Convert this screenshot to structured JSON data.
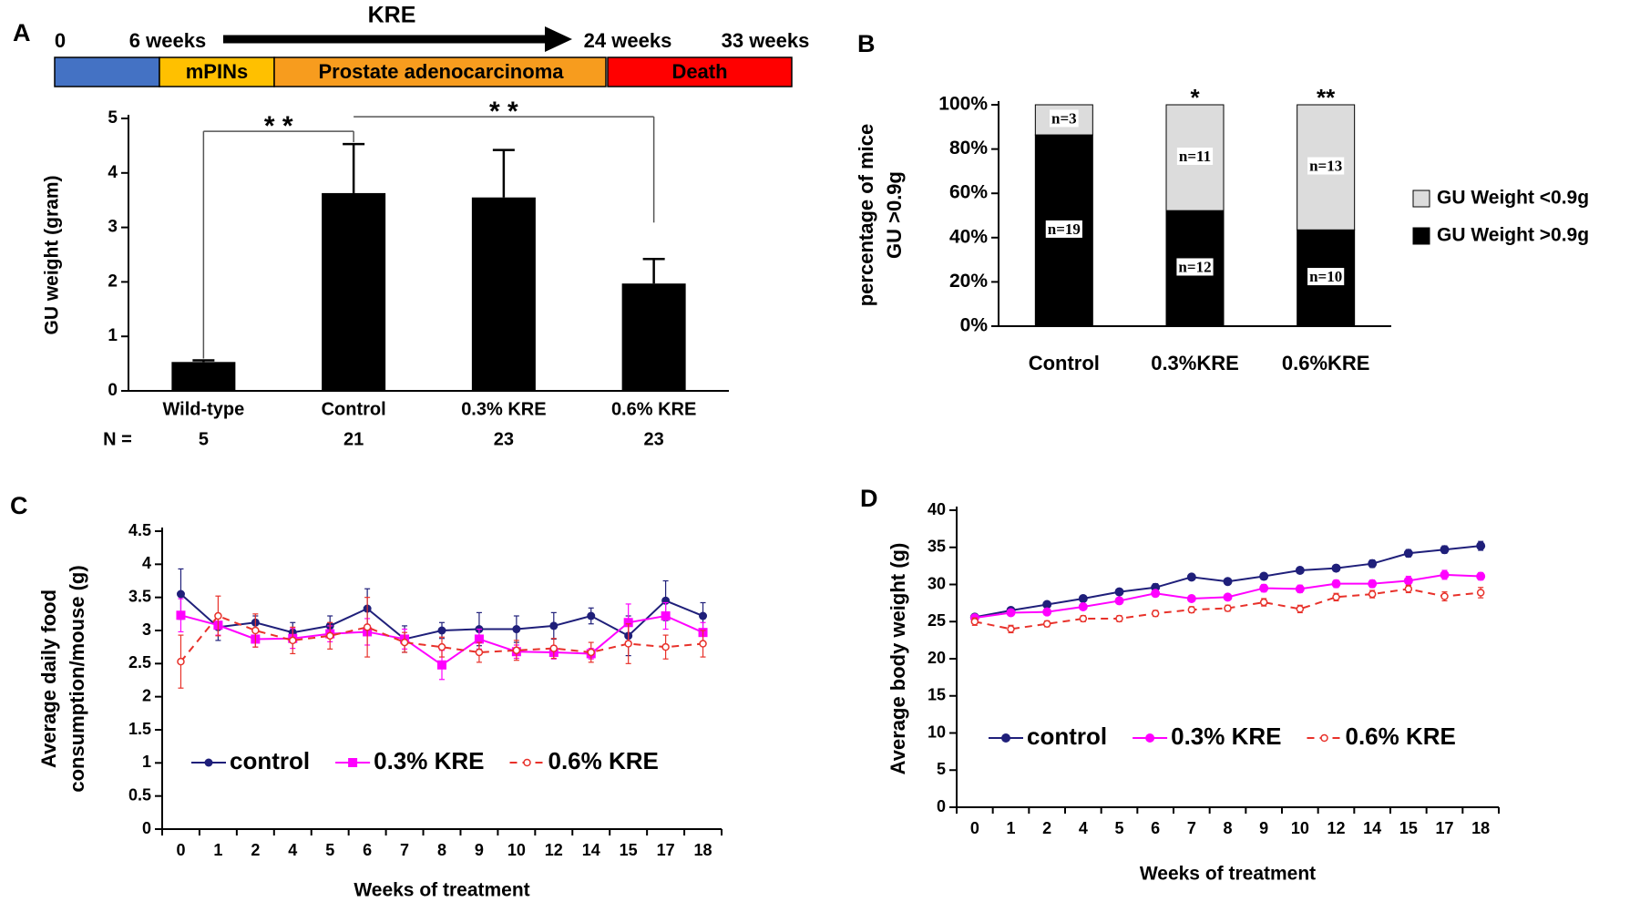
{
  "panel_labels": [
    "A",
    "B",
    "C",
    "D"
  ],
  "timeline": {
    "arrow_label": "KRE",
    "time_labels": [
      "0",
      "6 weeks",
      "24 weeks",
      "33 weeks"
    ],
    "segments": [
      {
        "color": "#4472c4"
      },
      {
        "label": "mPINs",
        "color": "#ffc000",
        "text_color": "#1f4e9a"
      },
      {
        "label": "Prostate adenocarcinoma",
        "color": "#f79c1e",
        "text_color": "#1f4e9a"
      },
      {
        "label": "Death",
        "color": "#ff0000",
        "text_color": "#ffffff"
      }
    ]
  },
  "chart_data": [
    {
      "type": "bar",
      "ylabel": "GU weight (gram)",
      "categories": [
        "Wild-type",
        "Control",
        "0.3% KRE",
        "0.6% KRE"
      ],
      "values": [
        0.53,
        3.63,
        3.55,
        1.97
      ],
      "errors": [
        0.03,
        0.9,
        0.87,
        0.45
      ],
      "color": "#000000",
      "ylim": [
        0,
        5
      ],
      "yticks": [
        0,
        1,
        2,
        3,
        4,
        5
      ],
      "n_label": "N =",
      "n": [
        5,
        21,
        23,
        23
      ],
      "significance": [
        {
          "between": [
            "Wild-type",
            "Control"
          ],
          "label": "* *"
        },
        {
          "between": [
            "Control",
            "0.6% KRE"
          ],
          "label": "* *"
        }
      ]
    },
    {
      "type": "stacked_bar",
      "ylabel": [
        "percentage of mice",
        "GU >0.9g"
      ],
      "categories": [
        "Control",
        "0.3%KRE",
        "0.6%KRE"
      ],
      "series": [
        {
          "name": "GU Weight >0.9g",
          "color": "#000000",
          "values": [
            86.4,
            52.2,
            43.5
          ],
          "n_labels": [
            "n=19",
            "n=12",
            "n=10"
          ]
        },
        {
          "name": "GU Weight <0.9g",
          "color": "#dcdcdc",
          "values": [
            13.6,
            47.8,
            56.5
          ],
          "n_labels": [
            "n=3",
            "n=11",
            "n=13"
          ]
        }
      ],
      "ylim": [
        0,
        100
      ],
      "yticks": [
        {
          "value": 0,
          "label": "0%"
        },
        {
          "value": 20,
          "label": "20%"
        },
        {
          "value": 40,
          "label": "40%"
        },
        {
          "value": 60,
          "label": "60%"
        },
        {
          "value": 80,
          "label": "80%"
        },
        {
          "value": 100,
          "label": "100%"
        }
      ],
      "significance": [
        {
          "category": "0.3%KRE",
          "label": "*"
        },
        {
          "category": "0.6%KRE",
          "label": "**"
        }
      ],
      "legend": "right"
    },
    {
      "type": "line",
      "xlabel": "Weeks of treatment",
      "ylabel": [
        "Average daily food",
        "consumption/mouse (g)"
      ],
      "categories": [
        "0",
        "1",
        "2",
        "4",
        "5",
        "6",
        "7",
        "8",
        "9",
        "10",
        "12",
        "14",
        "15",
        "17",
        "18"
      ],
      "series": [
        {
          "name": "control",
          "color": "#1f1f7a",
          "marker": "circle",
          "line_style": "solid",
          "values": [
            3.55,
            3.05,
            3.12,
            2.97,
            3.07,
            3.33,
            2.87,
            3.0,
            3.02,
            3.02,
            3.07,
            3.22,
            2.92,
            3.45,
            3.22
          ],
          "errors": [
            0.38,
            0.2,
            0.1,
            0.15,
            0.15,
            0.3,
            0.2,
            0.12,
            0.25,
            0.2,
            0.2,
            0.12,
            0.3,
            0.3,
            0.2
          ]
        },
        {
          "name": "0.3% KRE",
          "color": "#ff00ff",
          "marker": "square",
          "line_style": "solid",
          "values": [
            3.23,
            3.08,
            2.87,
            2.88,
            2.95,
            2.98,
            2.87,
            2.48,
            2.87,
            2.68,
            2.67,
            2.65,
            3.12,
            3.22,
            2.97
          ],
          "errors": [
            0.25,
            0.15,
            0.12,
            0.15,
            0.12,
            0.2,
            0.15,
            0.22,
            0.15,
            0.1,
            0.1,
            0.08,
            0.28,
            0.2,
            0.15
          ]
        },
        {
          "name": "0.6% KRE",
          "color": "#e8312a",
          "marker": "open-circle",
          "line_style": "dashed",
          "values": [
            2.53,
            3.22,
            3.0,
            2.85,
            2.92,
            3.05,
            2.82,
            2.75,
            2.67,
            2.7,
            2.73,
            2.67,
            2.8,
            2.75,
            2.8
          ],
          "errors": [
            0.4,
            0.3,
            0.25,
            0.2,
            0.2,
            0.45,
            0.15,
            0.15,
            0.15,
            0.15,
            0.15,
            0.15,
            0.3,
            0.18,
            0.2
          ]
        }
      ],
      "ylim": [
        0,
        4.5
      ],
      "yticks": [
        0,
        0.5,
        1,
        1.5,
        2,
        2.5,
        3,
        3.5,
        4,
        4.5
      ],
      "legend": "lower left"
    },
    {
      "type": "line",
      "xlabel": "Weeks of treatment",
      "ylabel": "Average body weight (g)",
      "categories": [
        "0",
        "1",
        "2",
        "4",
        "5",
        "6",
        "7",
        "8",
        "9",
        "10",
        "12",
        "14",
        "15",
        "17",
        "18"
      ],
      "series": [
        {
          "name": "control",
          "color": "#1f1f7a",
          "marker": "circle",
          "line_style": "solid",
          "values": [
            25.6,
            26.5,
            27.3,
            28.1,
            29.0,
            29.6,
            31.0,
            30.4,
            31.1,
            31.9,
            32.2,
            32.8,
            34.2,
            34.7,
            35.2
          ],
          "errors": [
            0.4,
            0.4,
            0.4,
            0.4,
            0.4,
            0.5,
            0.3,
            0.4,
            0.4,
            0.4,
            0.4,
            0.5,
            0.5,
            0.5,
            0.6
          ]
        },
        {
          "name": "0.3% KRE",
          "color": "#ff00ff",
          "marker": "circle",
          "line_style": "solid",
          "values": [
            25.5,
            26.2,
            26.3,
            27.0,
            27.8,
            28.8,
            28.1,
            28.3,
            29.5,
            29.4,
            30.1,
            30.1,
            30.5,
            31.3,
            31.1
          ],
          "errors": [
            0.4,
            0.4,
            0.4,
            0.4,
            0.4,
            0.4,
            0.4,
            0.4,
            0.5,
            0.5,
            0.5,
            0.5,
            0.6,
            0.6,
            0.5
          ]
        },
        {
          "name": "0.6% KRE",
          "color": "#e8312a",
          "marker": "open-circle",
          "line_style": "dashed",
          "values": [
            25.0,
            24.0,
            24.7,
            25.4,
            25.4,
            26.1,
            26.6,
            26.8,
            27.6,
            26.7,
            28.3,
            28.7,
            29.4,
            28.4,
            28.9
          ],
          "errors": [
            0.5,
            0.5,
            0.4,
            0.4,
            0.4,
            0.4,
            0.4,
            0.4,
            0.5,
            0.5,
            0.5,
            0.5,
            0.5,
            0.6,
            0.7
          ]
        }
      ],
      "ylim": [
        0,
        40
      ],
      "yticks": [
        0,
        5,
        10,
        15,
        20,
        25,
        30,
        35,
        40
      ],
      "legend": "lower left"
    }
  ]
}
